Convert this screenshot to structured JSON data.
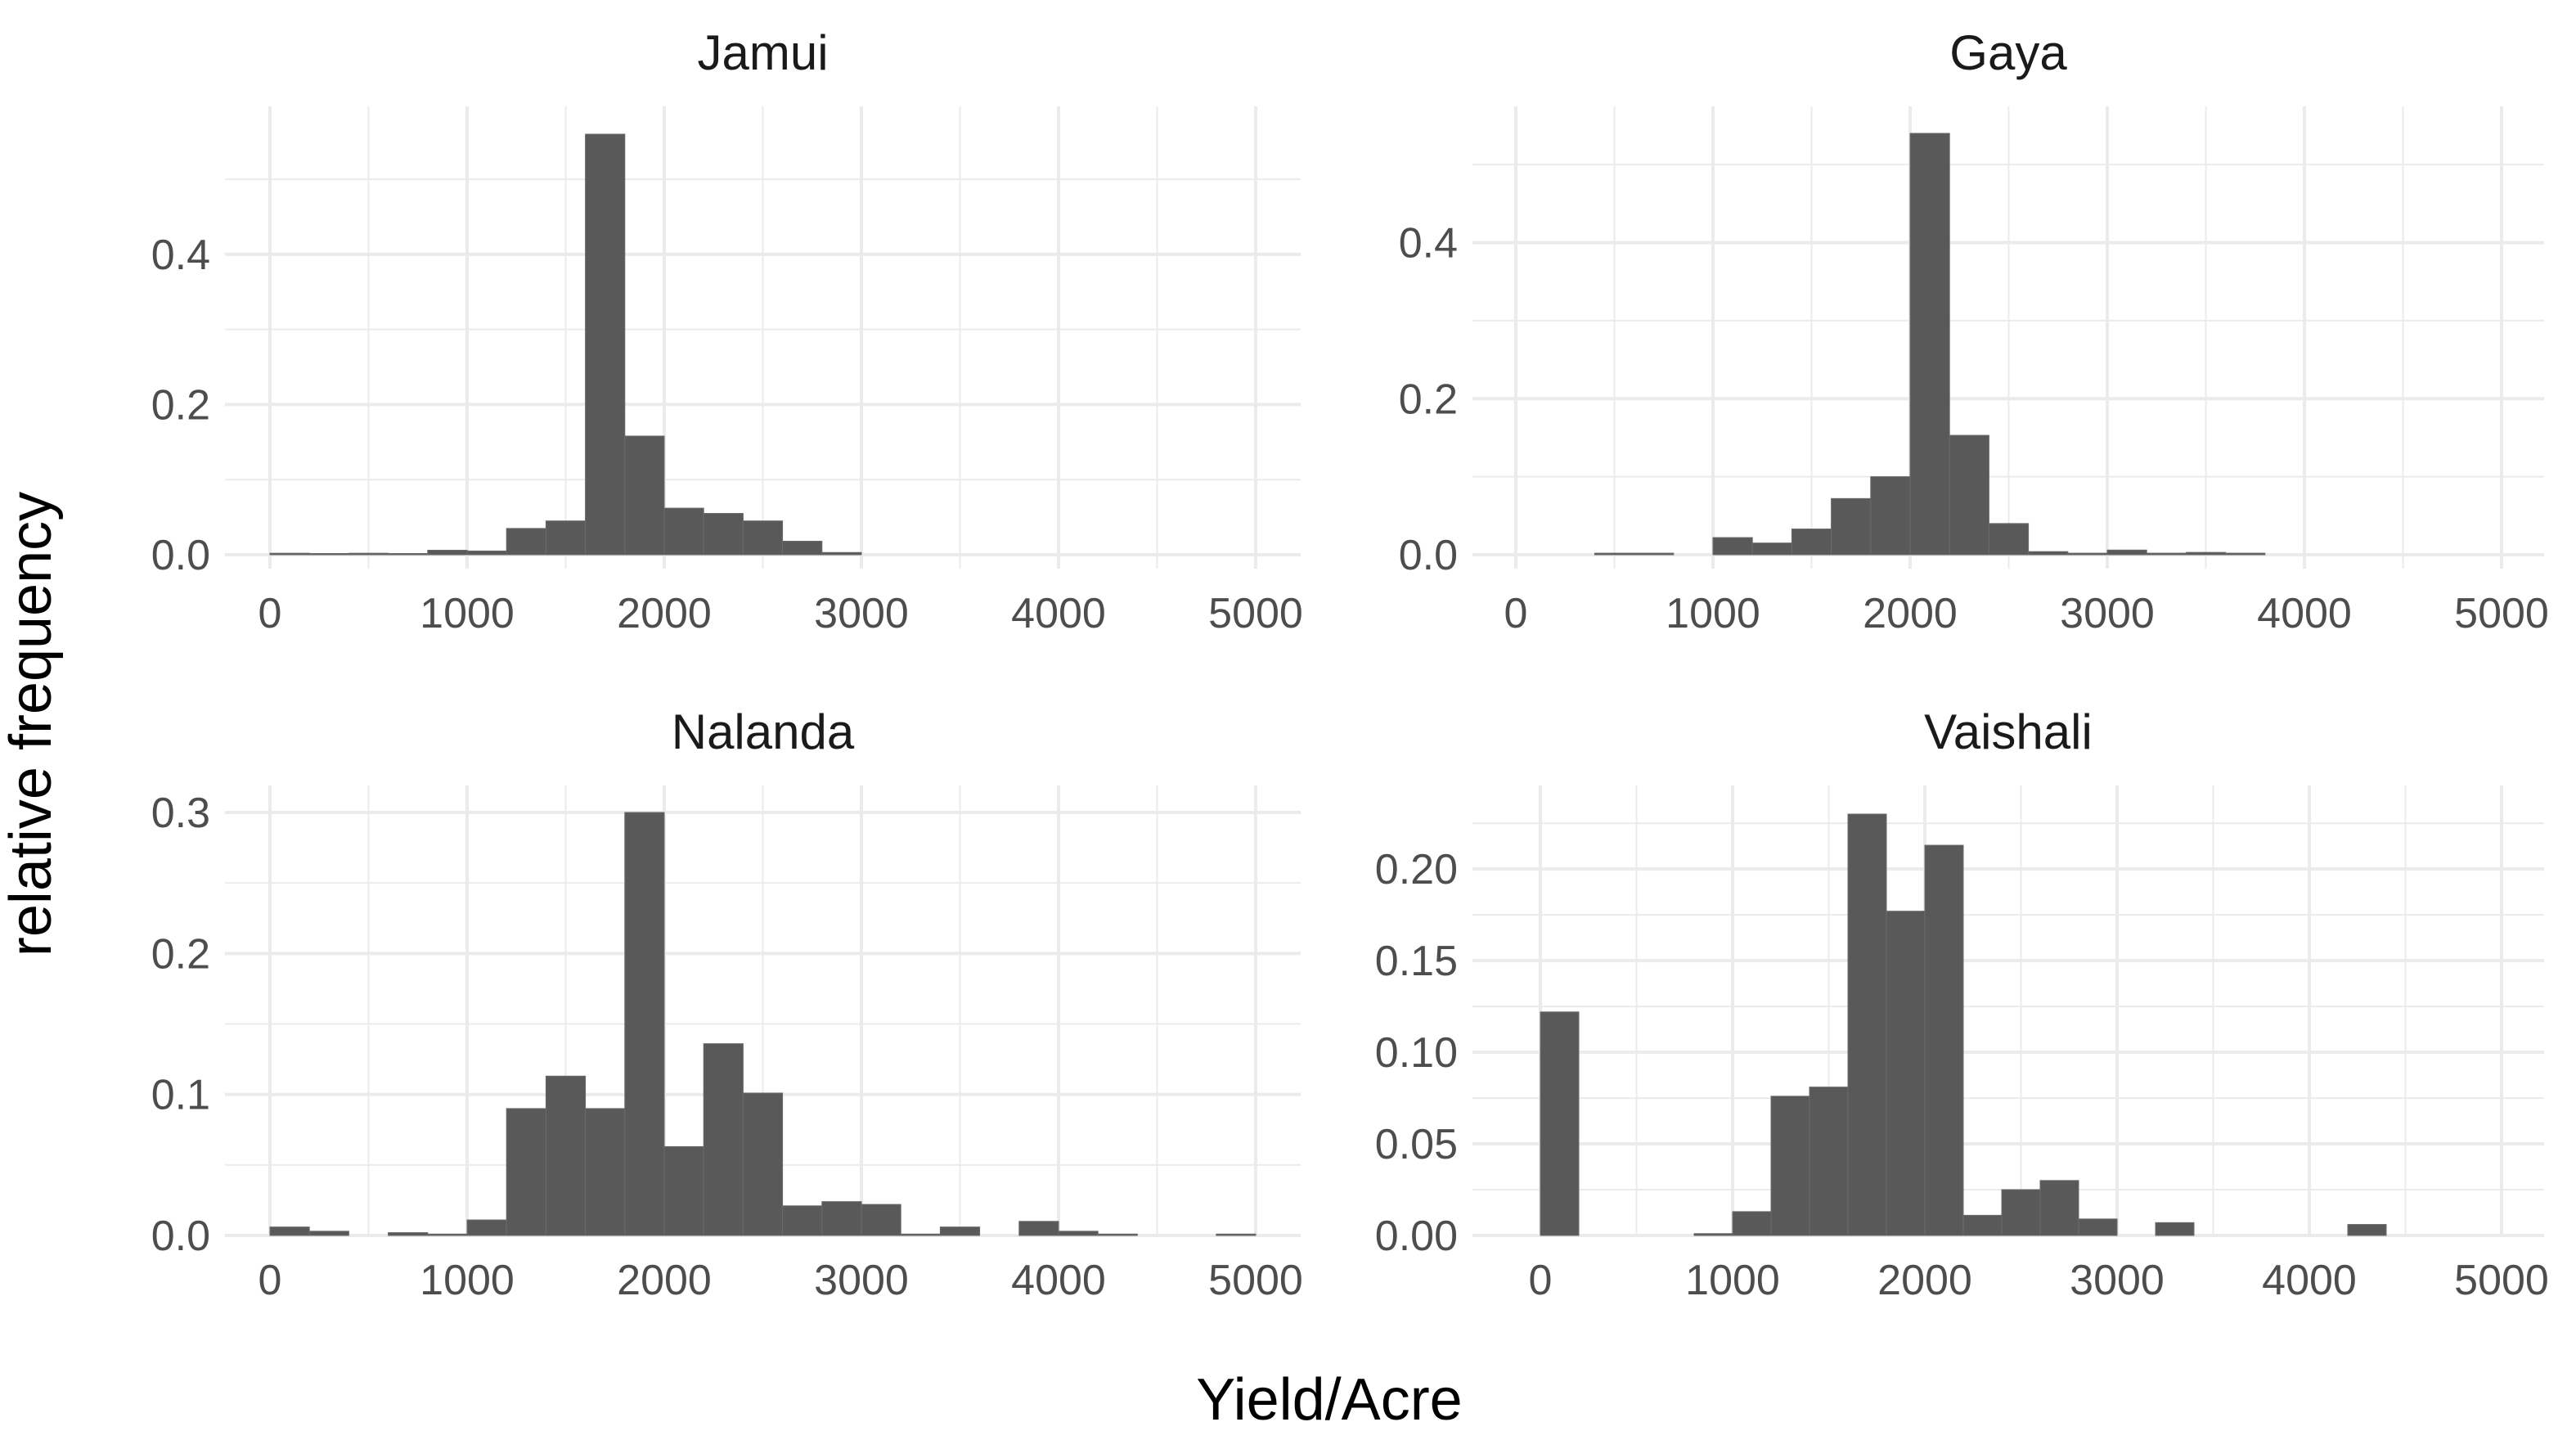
{
  "chart_data": {
    "type": "bar",
    "layout": "facet-grid 2x2",
    "xlabel": "Yield/Acre",
    "ylabel": "relative frequency",
    "bin_width": 200,
    "bar_color": "#595959",
    "grid_color": "#ebebeb",
    "xlim": [
      0,
      5000
    ],
    "x_ticks": [
      0,
      1000,
      2000,
      3000,
      4000,
      5000
    ],
    "panels": [
      {
        "title": "Jamui",
        "ylim": [
          0,
          0.56
        ],
        "y_ticks": [
          0.0,
          0.2,
          0.4
        ],
        "y_tick_labels": [
          "0.0",
          "0.2",
          "0.4"
        ],
        "bins": [
          {
            "x": 100,
            "y": 0.002
          },
          {
            "x": 300,
            "y": 0.001
          },
          {
            "x": 500,
            "y": 0.002
          },
          {
            "x": 700,
            "y": 0.001
          },
          {
            "x": 900,
            "y": 0.006
          },
          {
            "x": 1100,
            "y": 0.005
          },
          {
            "x": 1300,
            "y": 0.035
          },
          {
            "x": 1500,
            "y": 0.045
          },
          {
            "x": 1700,
            "y": 0.56
          },
          {
            "x": 1900,
            "y": 0.158
          },
          {
            "x": 2100,
            "y": 0.062
          },
          {
            "x": 2300,
            "y": 0.055
          },
          {
            "x": 2500,
            "y": 0.045
          },
          {
            "x": 2700,
            "y": 0.018
          },
          {
            "x": 2900,
            "y": 0.003
          }
        ]
      },
      {
        "title": "Gaya",
        "ylim": [
          0,
          0.54
        ],
        "y_ticks": [
          0.0,
          0.2,
          0.4
        ],
        "y_tick_labels": [
          "0.0",
          "0.2",
          "0.4"
        ],
        "bins": [
          {
            "x": 500,
            "y": 0.002
          },
          {
            "x": 700,
            "y": 0.002
          },
          {
            "x": 1100,
            "y": 0.022
          },
          {
            "x": 1300,
            "y": 0.015
          },
          {
            "x": 1500,
            "y": 0.033
          },
          {
            "x": 1700,
            "y": 0.072
          },
          {
            "x": 1900,
            "y": 0.1
          },
          {
            "x": 2100,
            "y": 0.54
          },
          {
            "x": 2300,
            "y": 0.153
          },
          {
            "x": 2500,
            "y": 0.04
          },
          {
            "x": 2700,
            "y": 0.004
          },
          {
            "x": 2900,
            "y": 0.002
          },
          {
            "x": 3100,
            "y": 0.006
          },
          {
            "x": 3300,
            "y": 0.002
          },
          {
            "x": 3500,
            "y": 0.003
          },
          {
            "x": 3700,
            "y": 0.002
          }
        ]
      },
      {
        "title": "Nalanda",
        "ylim": [
          0,
          0.3
        ],
        "y_ticks": [
          0.0,
          0.1,
          0.2,
          0.3
        ],
        "y_tick_labels": [
          "0.0",
          "0.1",
          "0.2",
          "0.3"
        ],
        "bins": [
          {
            "x": 100,
            "y": 0.006
          },
          {
            "x": 300,
            "y": 0.003
          },
          {
            "x": 700,
            "y": 0.002
          },
          {
            "x": 900,
            "y": 0.001
          },
          {
            "x": 1100,
            "y": 0.011
          },
          {
            "x": 1300,
            "y": 0.09
          },
          {
            "x": 1500,
            "y": 0.113
          },
          {
            "x": 1700,
            "y": 0.09
          },
          {
            "x": 1900,
            "y": 0.3
          },
          {
            "x": 2100,
            "y": 0.063
          },
          {
            "x": 2300,
            "y": 0.136
          },
          {
            "x": 2500,
            "y": 0.101
          },
          {
            "x": 2700,
            "y": 0.021
          },
          {
            "x": 2900,
            "y": 0.024
          },
          {
            "x": 3100,
            "y": 0.022
          },
          {
            "x": 3300,
            "y": 0.001
          },
          {
            "x": 3500,
            "y": 0.006
          },
          {
            "x": 3900,
            "y": 0.01
          },
          {
            "x": 4100,
            "y": 0.003
          },
          {
            "x": 4300,
            "y": 0.001
          },
          {
            "x": 4900,
            "y": 0.001
          }
        ]
      },
      {
        "title": "Vaishali",
        "ylim": [
          0,
          0.23
        ],
        "y_ticks": [
          0.0,
          0.05,
          0.1,
          0.15,
          0.2
        ],
        "y_tick_labels": [
          "0.00",
          "0.05",
          "0.10",
          "0.15",
          "0.20"
        ],
        "bins": [
          {
            "x": 100,
            "y": 0.122
          },
          {
            "x": 900,
            "y": 0.001
          },
          {
            "x": 1100,
            "y": 0.013
          },
          {
            "x": 1300,
            "y": 0.076
          },
          {
            "x": 1500,
            "y": 0.081
          },
          {
            "x": 1700,
            "y": 0.23
          },
          {
            "x": 1900,
            "y": 0.177
          },
          {
            "x": 2100,
            "y": 0.213
          },
          {
            "x": 2300,
            "y": 0.011
          },
          {
            "x": 2500,
            "y": 0.025
          },
          {
            "x": 2700,
            "y": 0.03
          },
          {
            "x": 2900,
            "y": 0.009
          },
          {
            "x": 3300,
            "y": 0.007
          },
          {
            "x": 4300,
            "y": 0.006
          }
        ]
      }
    ]
  }
}
